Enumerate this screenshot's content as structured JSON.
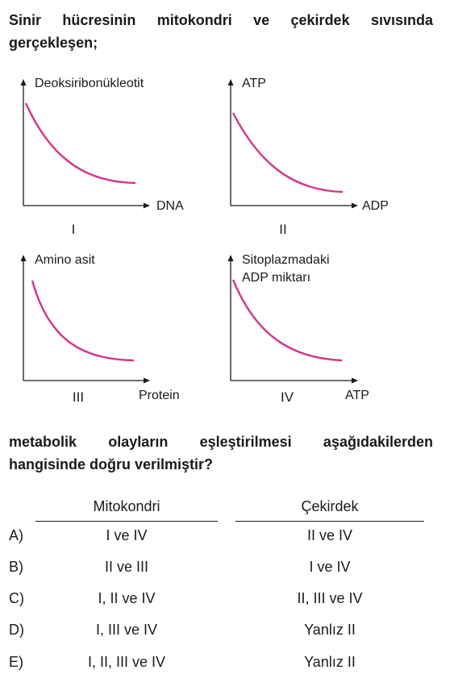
{
  "question": {
    "stem_line1": "Sinir hücresinin mitokondri ve çekirdek sıvısında",
    "stem_line2": "gerçekleşen;",
    "stem_line3": "metabolik olayların eşleştirilmesi aşağıdakilerden",
    "stem_line4": "hangisinde doğru verilmiştir?"
  },
  "graphs": [
    {
      "roman": "I",
      "ylabel": [
        "Deoksiribonükleotit"
      ],
      "xlabel": "DNA"
    },
    {
      "roman": "II",
      "ylabel": [
        "ATP"
      ],
      "xlabel": "ADP"
    },
    {
      "roman": "III",
      "ylabel": [
        "Amino asit"
      ],
      "xlabel": "Protein"
    },
    {
      "roman": "IV",
      "ylabel": [
        "Sitoplazmadaki",
        "ADP miktarı"
      ],
      "xlabel": "ATP"
    }
  ],
  "colors": {
    "curve": "#d6338a",
    "text": "#1a1a1a"
  },
  "table": {
    "headers": {
      "col1": "Mitokondri",
      "col2": "Çekirdek"
    },
    "options": [
      {
        "letter": "A)",
        "mitokondri": "I ve IV",
        "cekirdek": "II ve IV"
      },
      {
        "letter": "B)",
        "mitokondri": "II ve III",
        "cekirdek": "I ve IV"
      },
      {
        "letter": "C)",
        "mitokondri": "I, II ve IV",
        "cekirdek": "II, III ve IV"
      },
      {
        "letter": "D)",
        "mitokondri": "I, III ve IV",
        "cekirdek": "Yanlız II"
      },
      {
        "letter": "E)",
        "mitokondri": "I, II, III ve IV",
        "cekirdek": "Yanlız II"
      }
    ]
  }
}
